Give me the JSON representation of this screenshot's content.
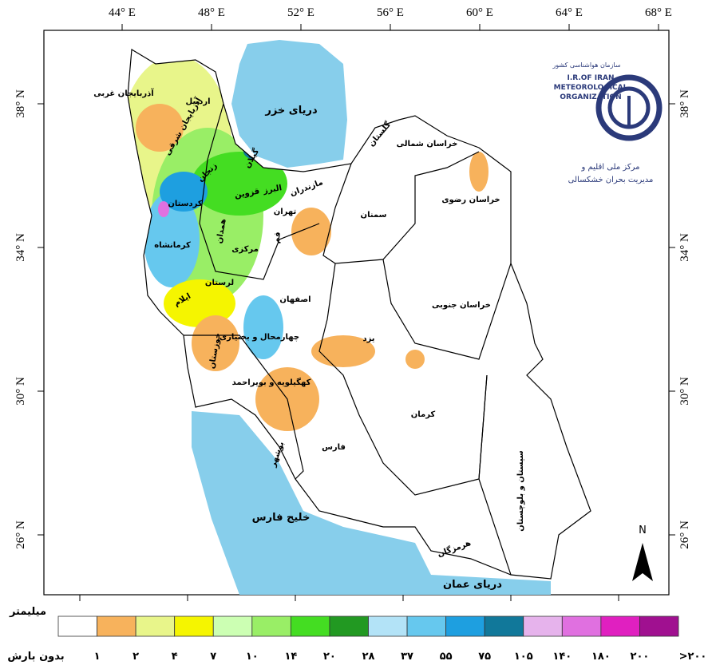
{
  "map": {
    "longitude_labels": [
      "44° E",
      "48° E",
      "52° E",
      "56° E",
      "60° E",
      "64° E",
      "68° E"
    ],
    "latitude_labels": [
      "38° N",
      "34° N",
      "30° N",
      "26° N"
    ],
    "provinces": [
      "آذربایجان غربی",
      "آذربایجان شرقی",
      "اردبیل",
      "گیلان",
      "مازندران",
      "گلستان",
      "خراسان شمالی",
      "خراسان رضوی",
      "سمنان",
      "تهران",
      "البرز",
      "قزوین",
      "زنجان",
      "کردستان",
      "همدان",
      "کرمانشاه",
      "مرکزی",
      "قم",
      "لرستان",
      "ایلام",
      "خوزستان",
      "اصفهان",
      "چهارمحال و بختیاری",
      "کهگیلویه و بویراحمد",
      "بوشهر",
      "فارس",
      "یزد",
      "کرمان",
      "هرمزگان",
      "سیستان و بلوچستان",
      "خراسان جنوبی"
    ],
    "water_bodies": [
      "دریای خزر",
      "خلیج فارس",
      "دریای عمان"
    ],
    "north_arrow": "N"
  },
  "logo": {
    "org_fa": "سازمان هواشناسی کشور",
    "org_en": [
      "I.R.OF IRAN",
      "METEOROLOGICAL",
      "ORGANIZATION"
    ],
    "center_fa": [
      "مرکز ملی اقلیم و",
      "مدیریت بحران خشکسالی"
    ]
  },
  "legend": {
    "unit": "میلیمتر",
    "colors": [
      "#ffffff",
      "#f7b25c",
      "#e8f58a",
      "#f5f500",
      "#ccffb3",
      "#99ee66",
      "#44dd22",
      "#229922",
      "#b3e3f7",
      "#66c8ee",
      "#1e9fe0",
      "#11789a",
      "#e6b3ec",
      "#e070e0",
      "#e020c0",
      "#a01090"
    ],
    "labels": [
      "بدون بارش",
      "۱",
      "۲",
      "۴",
      "۷",
      "۱۰",
      "۱۴",
      "۲۰",
      "۲۸",
      "۳۷",
      "۵۵",
      "۷۵",
      "۱۰۵",
      "۱۴۰",
      "۱۸۰",
      "۲۰۰",
      ">۲۰۰"
    ]
  }
}
